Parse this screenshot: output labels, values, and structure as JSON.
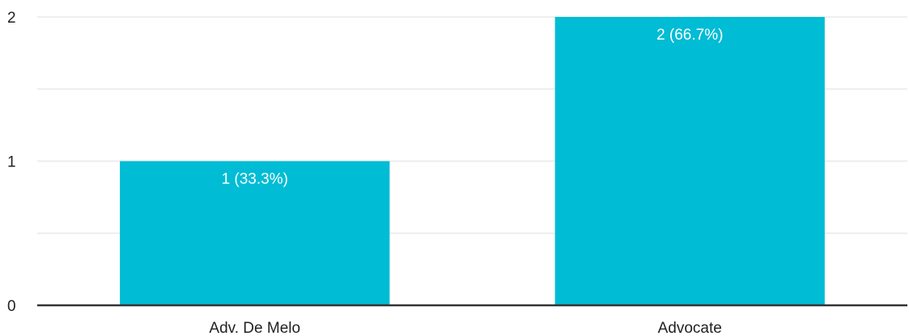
{
  "chart_data": {
    "type": "bar",
    "categories": [
      "Adv. De Melo",
      "Advocate"
    ],
    "values": [
      1,
      2
    ],
    "data_labels": [
      "1 (33.3%)",
      "2 (66.7%)"
    ],
    "ylim": [
      0,
      2
    ],
    "y_ticks": [
      0,
      1,
      2
    ],
    "y_tick_labels": [
      "0",
      "1",
      "2"
    ],
    "minor_gridlines": true,
    "grid": true,
    "legend": "none",
    "bar_color": "#00BCD4",
    "grid_color": "#EEEEEE",
    "axis_color": "#333333"
  }
}
